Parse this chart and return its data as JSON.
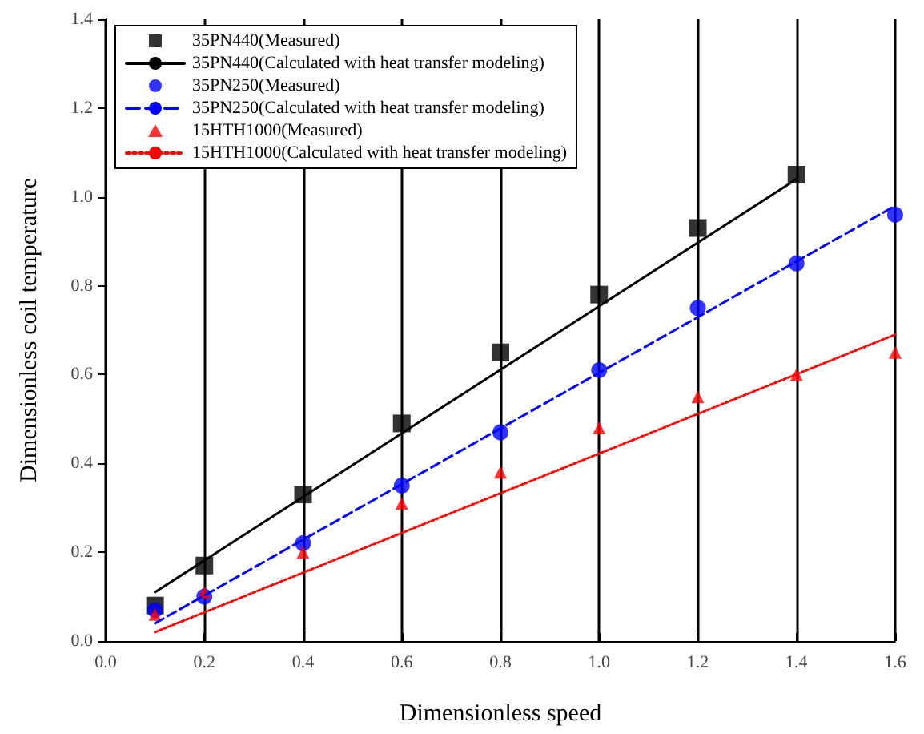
{
  "chart_data": {
    "type": "scatter",
    "xlabel": "Dimensionless speed",
    "ylabel": "Dimensionless coil temperature",
    "xlim": [
      0,
      1.6
    ],
    "xticks": [
      {
        "value": 0,
        "label": "0.0"
      },
      0.2,
      0.4,
      0.6,
      0.8,
      {
        "value": 1,
        "label": "1.0"
      },
      1.2,
      1.4,
      1.6
    ],
    "ylim": [
      0,
      1.4
    ],
    "yticks": [
      {
        "value": 0,
        "label": "0.0"
      },
      0.2,
      0.4,
      0.6,
      0.8,
      {
        "value": 1,
        "label": "1.0"
      },
      1.2,
      1.4
    ],
    "grid": "x",
    "legend": "top left",
    "series": [
      {
        "name": "35PN440(Measured)",
        "marker": "square",
        "color": "#000000",
        "x": [
          0.1,
          0.2,
          0.4,
          0.6,
          0.8,
          1.0,
          1.2,
          1.4
        ],
        "values": [
          0.08,
          0.17,
          0.33,
          0.49,
          0.65,
          0.78,
          0.93,
          1.05
        ]
      },
      {
        "name": "35PN440(Calculated with heat transfer modeling)",
        "type": "line",
        "line_style": "solid",
        "color": "#000000",
        "x": [
          0.1,
          1.4
        ],
        "values": [
          0.11,
          1.04
        ]
      },
      {
        "name": "35PN250(Measured)",
        "marker": "circle",
        "color": "#0000ff",
        "x": [
          0.1,
          0.2,
          0.4,
          0.6,
          0.8,
          1.0,
          1.2,
          1.4,
          1.6
        ],
        "values": [
          0.07,
          0.1,
          0.22,
          0.35,
          0.47,
          0.61,
          0.75,
          0.85,
          0.96
        ]
      },
      {
        "name": "35PN250(Calculated with heat transfer modeling)",
        "type": "line",
        "line_style": "dashed",
        "color": "#0000ff",
        "x": [
          0.1,
          1.6
        ],
        "values": [
          0.04,
          0.98
        ]
      },
      {
        "name": "15HTH1000(Measured)",
        "marker": "triangle",
        "color": "#ff0000",
        "x": [
          0.1,
          0.2,
          0.4,
          0.6,
          0.8,
          1.0,
          1.2,
          1.4,
          1.6
        ],
        "values": [
          0.06,
          0.11,
          0.2,
          0.31,
          0.38,
          0.48,
          0.55,
          0.6,
          0.65
        ]
      },
      {
        "name": "15HTH1000(Calculated with heat transfer modeling)",
        "type": "line",
        "line_style": "dotted",
        "color": "#ff0000",
        "x": [
          0.1,
          1.6
        ],
        "values": [
          0.02,
          0.69
        ]
      }
    ]
  }
}
